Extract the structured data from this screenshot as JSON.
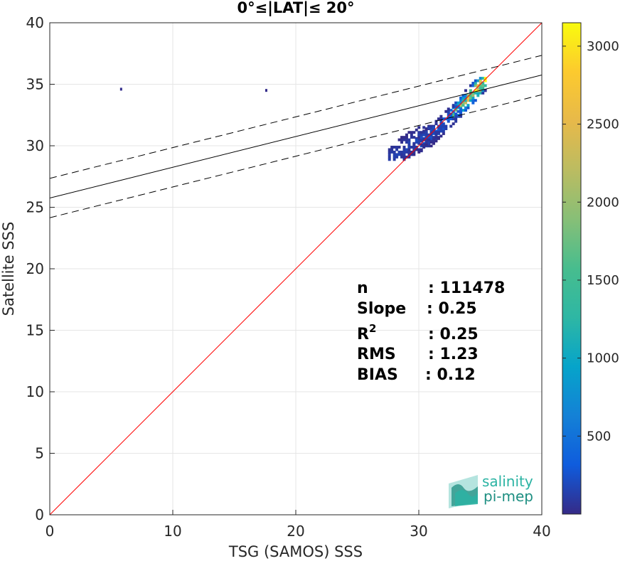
{
  "chart_data": {
    "type": "heatmap",
    "title": "0°≤|LAT|≤ 20°",
    "xlabel": "TSG (SAMOS) SSS",
    "ylabel": "Satellite SSS",
    "xlim": [
      0,
      40
    ],
    "ylim": [
      0,
      40
    ],
    "xticks": [
      "0",
      "10",
      "20",
      "30",
      "40"
    ],
    "yticks": [
      "0",
      "5",
      "10",
      "15",
      "20",
      "25",
      "30",
      "35",
      "40"
    ],
    "grid": true,
    "colorbar": {
      "range": [
        0,
        3150
      ],
      "ticks": [
        "500",
        "1000",
        "1500",
        "2000",
        "2500",
        "3000"
      ],
      "colormap": "parula"
    },
    "density_clusters": [
      {
        "x0": 32.5,
        "x1": 35.5,
        "y0": 32.2,
        "y1": 35.5,
        "trend": "diagonal",
        "peak": 3100
      },
      {
        "x0": 29.5,
        "x1": 33.5,
        "y0": 29.5,
        "y1": 33.2,
        "trend": "diagonal",
        "peak": 400
      },
      {
        "x0": 27.5,
        "x1": 31.5,
        "y0": 28.8,
        "y1": 31.5,
        "trend": "scattered",
        "peak": 150
      },
      {
        "x0": 5.8,
        "x1": 5.8,
        "y0": 34.6,
        "y1": 34.6,
        "trend": "point",
        "peak": 20
      },
      {
        "x0": 17.6,
        "x1": 17.6,
        "y0": 34.5,
        "y1": 34.5,
        "trend": "point",
        "peak": 10
      }
    ],
    "lines": [
      {
        "name": "identity",
        "color": "#ff0000",
        "style": "solid",
        "points": [
          [
            0,
            0
          ],
          [
            40,
            40
          ]
        ]
      },
      {
        "name": "regression",
        "color": "#000000",
        "style": "solid",
        "points": [
          [
            0,
            25.75
          ],
          [
            40,
            35.75
          ]
        ]
      },
      {
        "name": "regression_upper",
        "color": "#000000",
        "style": "dashed",
        "points": [
          [
            0,
            27.35
          ],
          [
            40,
            37.35
          ]
        ]
      },
      {
        "name": "regression_lower",
        "color": "#000000",
        "style": "dashed",
        "points": [
          [
            0,
            24.15
          ],
          [
            40,
            34.15
          ]
        ]
      }
    ],
    "stats": [
      {
        "label": "n",
        "value": ": 111478"
      },
      {
        "label": "Slope",
        "value": ": 0.25"
      },
      {
        "label": "R",
        "sup": "2",
        "value": ": 0.25"
      },
      {
        "label": "RMS",
        "value": ": 1.23"
      },
      {
        "label": "BIAS",
        "value": ": 0.12"
      }
    ]
  },
  "logo": {
    "line1": "salinity",
    "line2": "pi-mep"
  }
}
